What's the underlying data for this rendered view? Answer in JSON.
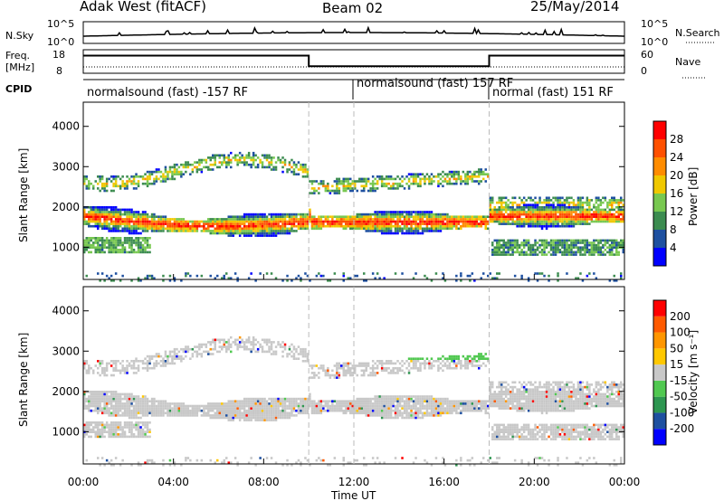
{
  "header": {
    "title": "Adak West (fitACF)",
    "beam": "Beam 02",
    "date": "25/May/2014"
  },
  "strip_labels": {
    "nsky": "N.Sky",
    "nsky_ticks": [
      "10^5",
      "10^0"
    ],
    "nsearch": "N.Search",
    "nsearch_ticks": [
      "10^5",
      "10^0"
    ],
    "freq_line1": "Freq.",
    "freq_line2": "[MHz]",
    "freq_ticks": [
      "18",
      "8"
    ],
    "nave": "Nave",
    "nave_ticks": [
      "60",
      "0"
    ],
    "cpid": "CPID"
  },
  "cpid_segments": [
    {
      "label": "normalsound (fast) -157 RF",
      "start_hour": 0
    },
    {
      "label": "normalsound (fast) 157 RF",
      "start_hour": 12
    },
    {
      "label": "normal (fast) 151 RF",
      "start_hour": 18
    }
  ],
  "colors": {
    "power": [
      "#0000ff",
      "#1e50a0",
      "#3c8c50",
      "#78c850",
      "#f0c800",
      "#ff8c00",
      "#ff5000",
      "#ff0000"
    ],
    "velocity": [
      "#ff0000",
      "#ff5a00",
      "#ff9600",
      "#ffc800",
      "#c8c8c8",
      "#50c850",
      "#2d9650",
      "#1e50a0",
      "#0000ff"
    ]
  },
  "chart_data": [
    {
      "type": "heatmap",
      "title": "Power",
      "ylabel": "Slant Range [km]",
      "xlabel": "Time UT",
      "x_ticks": [
        "00:00",
        "04:00",
        "08:00",
        "12:00",
        "16:00",
        "20:00",
        "00:00"
      ],
      "y_ticks": [
        "1000",
        "2000",
        "3000",
        "4000"
      ],
      "ylim": [
        200,
        4600
      ],
      "xlim_hours": [
        0,
        24
      ],
      "colorbar_label": "Power [dB]",
      "colorbar_ticks": [
        "4",
        "8",
        "12",
        "16",
        "20",
        "24",
        "28"
      ],
      "colorbar_range": [
        0,
        32
      ],
      "dashed_markers_hours": [
        10,
        12,
        18
      ]
    },
    {
      "type": "heatmap",
      "title": "Velocity",
      "ylabel": "Slant Range [km]",
      "xlabel": "Time UT",
      "x_ticks": [
        "00:00",
        "04:00",
        "08:00",
        "12:00",
        "16:00",
        "20:00",
        "00:00"
      ],
      "y_ticks": [
        "1000",
        "2000",
        "3000",
        "4000"
      ],
      "ylim": [
        200,
        4600
      ],
      "xlim_hours": [
        0,
        24
      ],
      "colorbar_label": "Velocity [m s⁻¹]",
      "colorbar_ticks": [
        "200",
        "100",
        "50",
        "15",
        "-15",
        "-50",
        "-100",
        "-200"
      ],
      "dashed_markers_hours": [
        10,
        12,
        18
      ]
    },
    {
      "type": "line",
      "title": "Frequency",
      "ylim": [
        8,
        18
      ],
      "series": [
        {
          "x": [
            0,
            10,
            10,
            18,
            18,
            24
          ],
          "values": [
            15.5,
            15.5,
            11,
            11,
            15.5,
            15.5
          ]
        }
      ]
    }
  ],
  "xlabel": "Time UT"
}
